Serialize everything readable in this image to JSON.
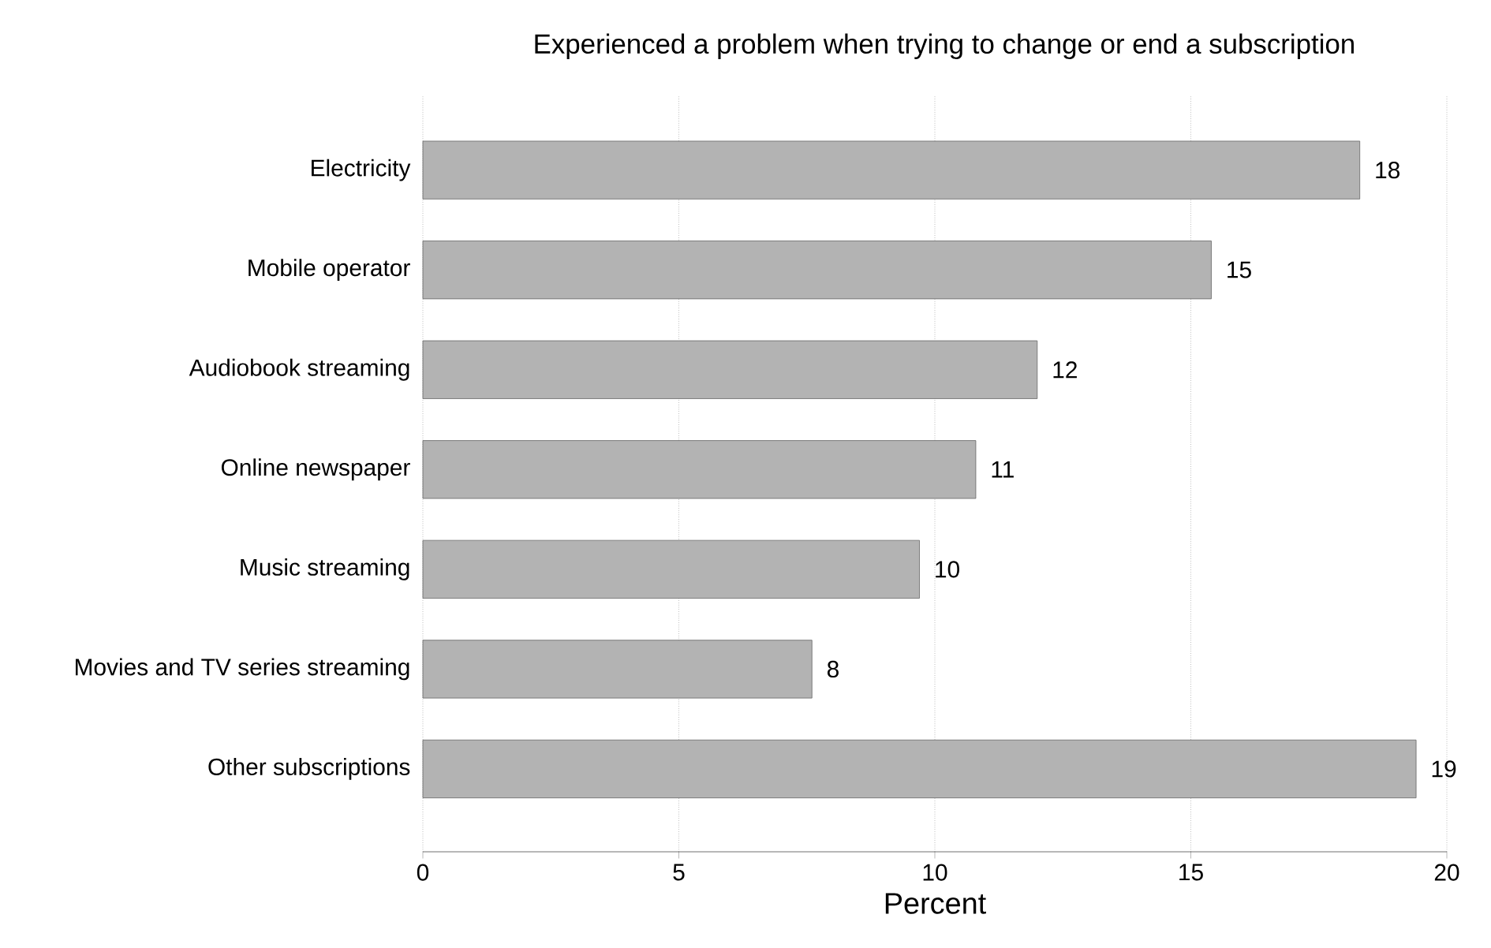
{
  "chart_data": {
    "type": "bar",
    "orientation": "horizontal",
    "title": "Experienced a problem when trying to change or end a subscription",
    "xlabel": "Percent",
    "categories": [
      "Electricity",
      "Mobile operator",
      "Audiobook streaming",
      "Online newspaper",
      "Music streaming",
      "Movies and TV series streaming",
      "Other subscriptions"
    ],
    "values": [
      18.3,
      15.4,
      12.0,
      10.8,
      9.7,
      7.6,
      19.4
    ],
    "value_labels": [
      "18",
      "15",
      "12",
      "11",
      "10",
      "8",
      "19"
    ],
    "color": "#b3b3b3",
    "xlim": [
      0,
      20
    ],
    "xticks": [
      0,
      5,
      10,
      15,
      20
    ],
    "grid": "x"
  }
}
